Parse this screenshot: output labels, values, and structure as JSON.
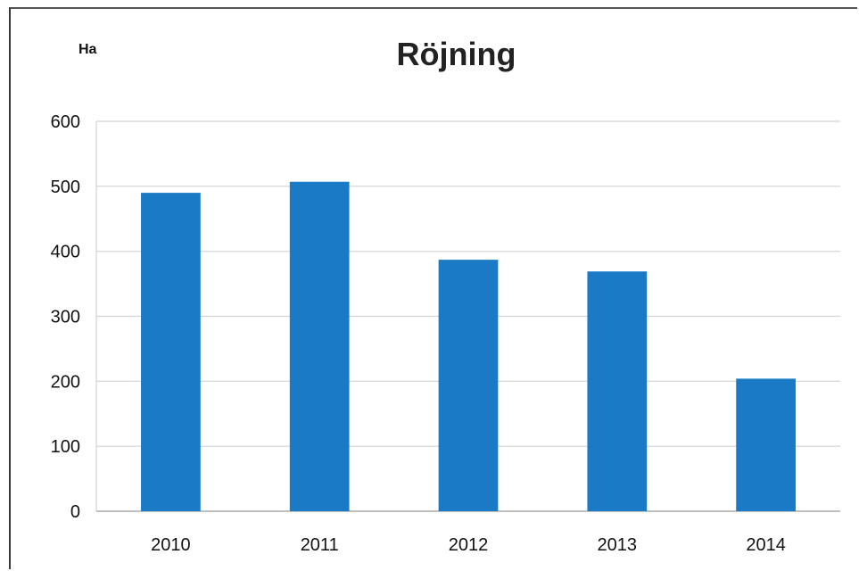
{
  "chart_data": {
    "type": "bar",
    "title": "Röjning",
    "ylabel": "Ha",
    "xlabel": "",
    "categories": [
      "2010",
      "2011",
      "2012",
      "2013",
      "2014"
    ],
    "values": [
      490,
      507,
      387,
      369,
      204
    ],
    "ylim": [
      0,
      600
    ],
    "yticks": [
      0,
      100,
      200,
      300,
      400,
      500,
      600
    ],
    "grid": true,
    "legend": "none",
    "colors": {
      "bar": "#1a7ac6",
      "grid": "#d2d2d2",
      "text": "#111111"
    }
  }
}
